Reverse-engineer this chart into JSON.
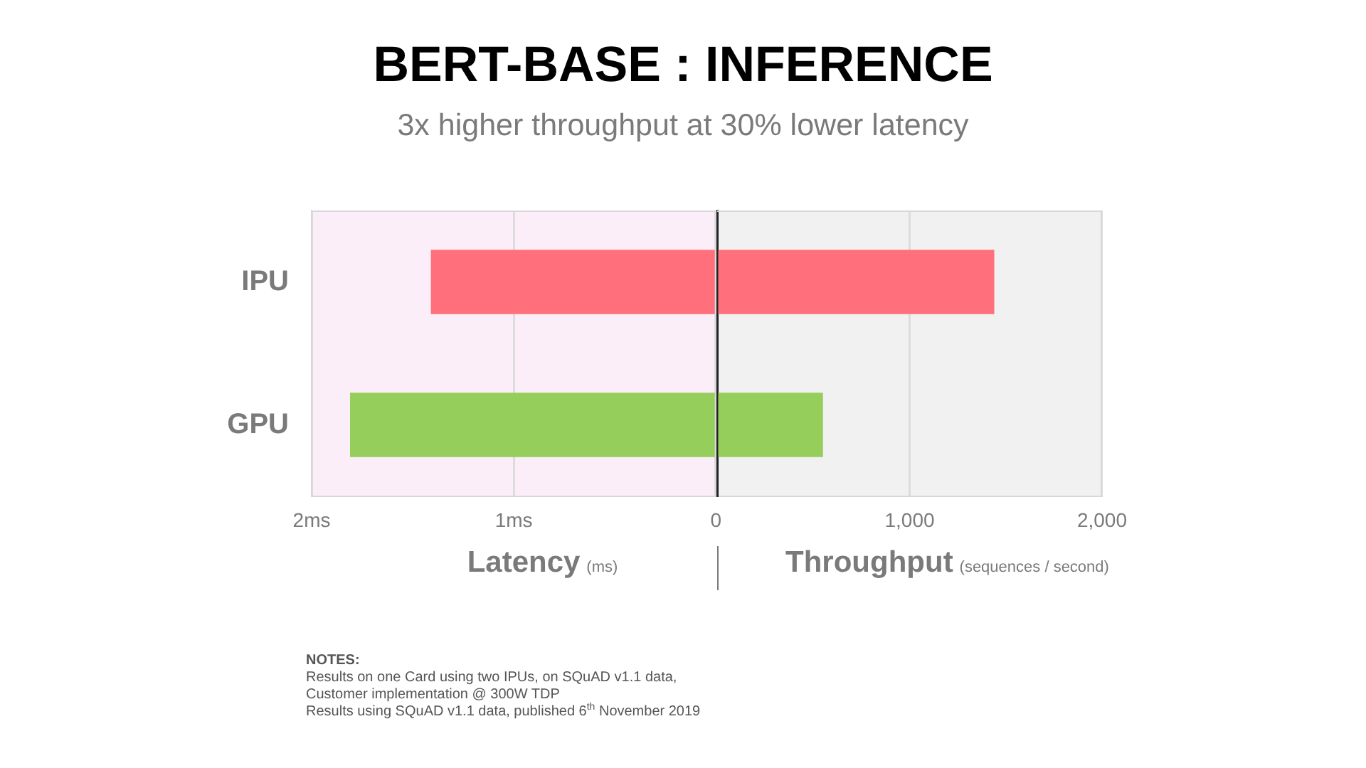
{
  "chart_data": [
    {
      "type": "bar",
      "orientation": "horizontal",
      "title": "BERT-BASE : INFERENCE",
      "subtitle": "3x higher throughput at 30% lower latency",
      "categories": [
        "IPU",
        "GPU"
      ],
      "values": [
        1.41,
        1.81
      ],
      "colors": [
        "#ff707c",
        "#95ce5a"
      ],
      "xlim": [
        2,
        0
      ],
      "xticks": [
        {
          "value": 2,
          "label": "2ms"
        },
        {
          "value": 1,
          "label": "1ms"
        },
        0
      ],
      "xlabel": "Latency (ms)",
      "grid": "x",
      "annotations": [
        "NOTES:",
        "Results on one Card using two IPUs, on SQuAD v1.1 data,",
        "Customer implementation @ 300W TDP",
        "Results using SQuAD v1.1 data, published 6$^{th}$ November 2019"
      ]
    },
    {
      "type": "bar",
      "orientation": "horizontal",
      "categories": [
        null,
        null
      ],
      "values": [
        1440,
        550
      ],
      "colors": [
        "#ff707c",
        "#95ce5a"
      ],
      "xlim": [
        0,
        2000
      ],
      "xticks": [
        {
          "value": 0,
          "label": null
        },
        {
          "value": 1000,
          "label": "1,000"
        },
        {
          "value": 2000,
          "label": "2,000"
        }
      ],
      "xlabel": "Throughput (sequences / second)",
      "grid": "x"
    }
  ]
}
